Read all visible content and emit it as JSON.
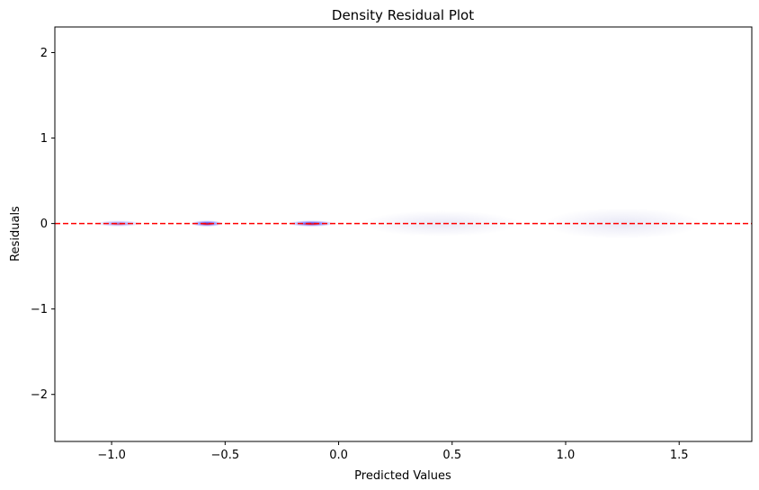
{
  "chart_data": {
    "type": "scatter",
    "title": "Density Residual Plot",
    "xlabel": "Predicted Values",
    "ylabel": "Residuals",
    "xlim": [
      -1.25,
      1.82
    ],
    "ylim": [
      -2.55,
      2.3
    ],
    "xticks": [
      -1.0,
      -0.5,
      0.0,
      0.5,
      1.0,
      1.5
    ],
    "xtick_labels": [
      "−1.0",
      "−0.5",
      "0.0",
      "0.5",
      "1.0",
      "1.5"
    ],
    "yticks": [
      -2,
      -1,
      0,
      1,
      2
    ],
    "ytick_labels": [
      "−2",
      "−1",
      "0",
      "1",
      "2"
    ],
    "grid": false,
    "reference_line": {
      "y": 0,
      "color": "#ff0000",
      "style": "dashed"
    },
    "density_clusters": [
      {
        "x": -0.97,
        "y": 0.0,
        "x_spread": 0.1,
        "y_spread": 0.012,
        "intensity": 0.55
      },
      {
        "x": -0.58,
        "y": 0.0,
        "x_spread": 0.07,
        "y_spread": 0.012,
        "intensity": 1.0
      },
      {
        "x": -0.12,
        "y": 0.0,
        "x_spread": 0.1,
        "y_spread": 0.012,
        "intensity": 0.95
      },
      {
        "x": 0.45,
        "y": 0.0,
        "x_spread": 0.35,
        "y_spread": 0.05,
        "intensity": 0.08
      },
      {
        "x": 1.25,
        "y": 0.0,
        "x_spread": 0.35,
        "y_spread": 0.06,
        "intensity": 0.06
      }
    ],
    "colors": {
      "density": "#0000ff",
      "core": "#ff0000",
      "line": "#ff0000"
    }
  }
}
